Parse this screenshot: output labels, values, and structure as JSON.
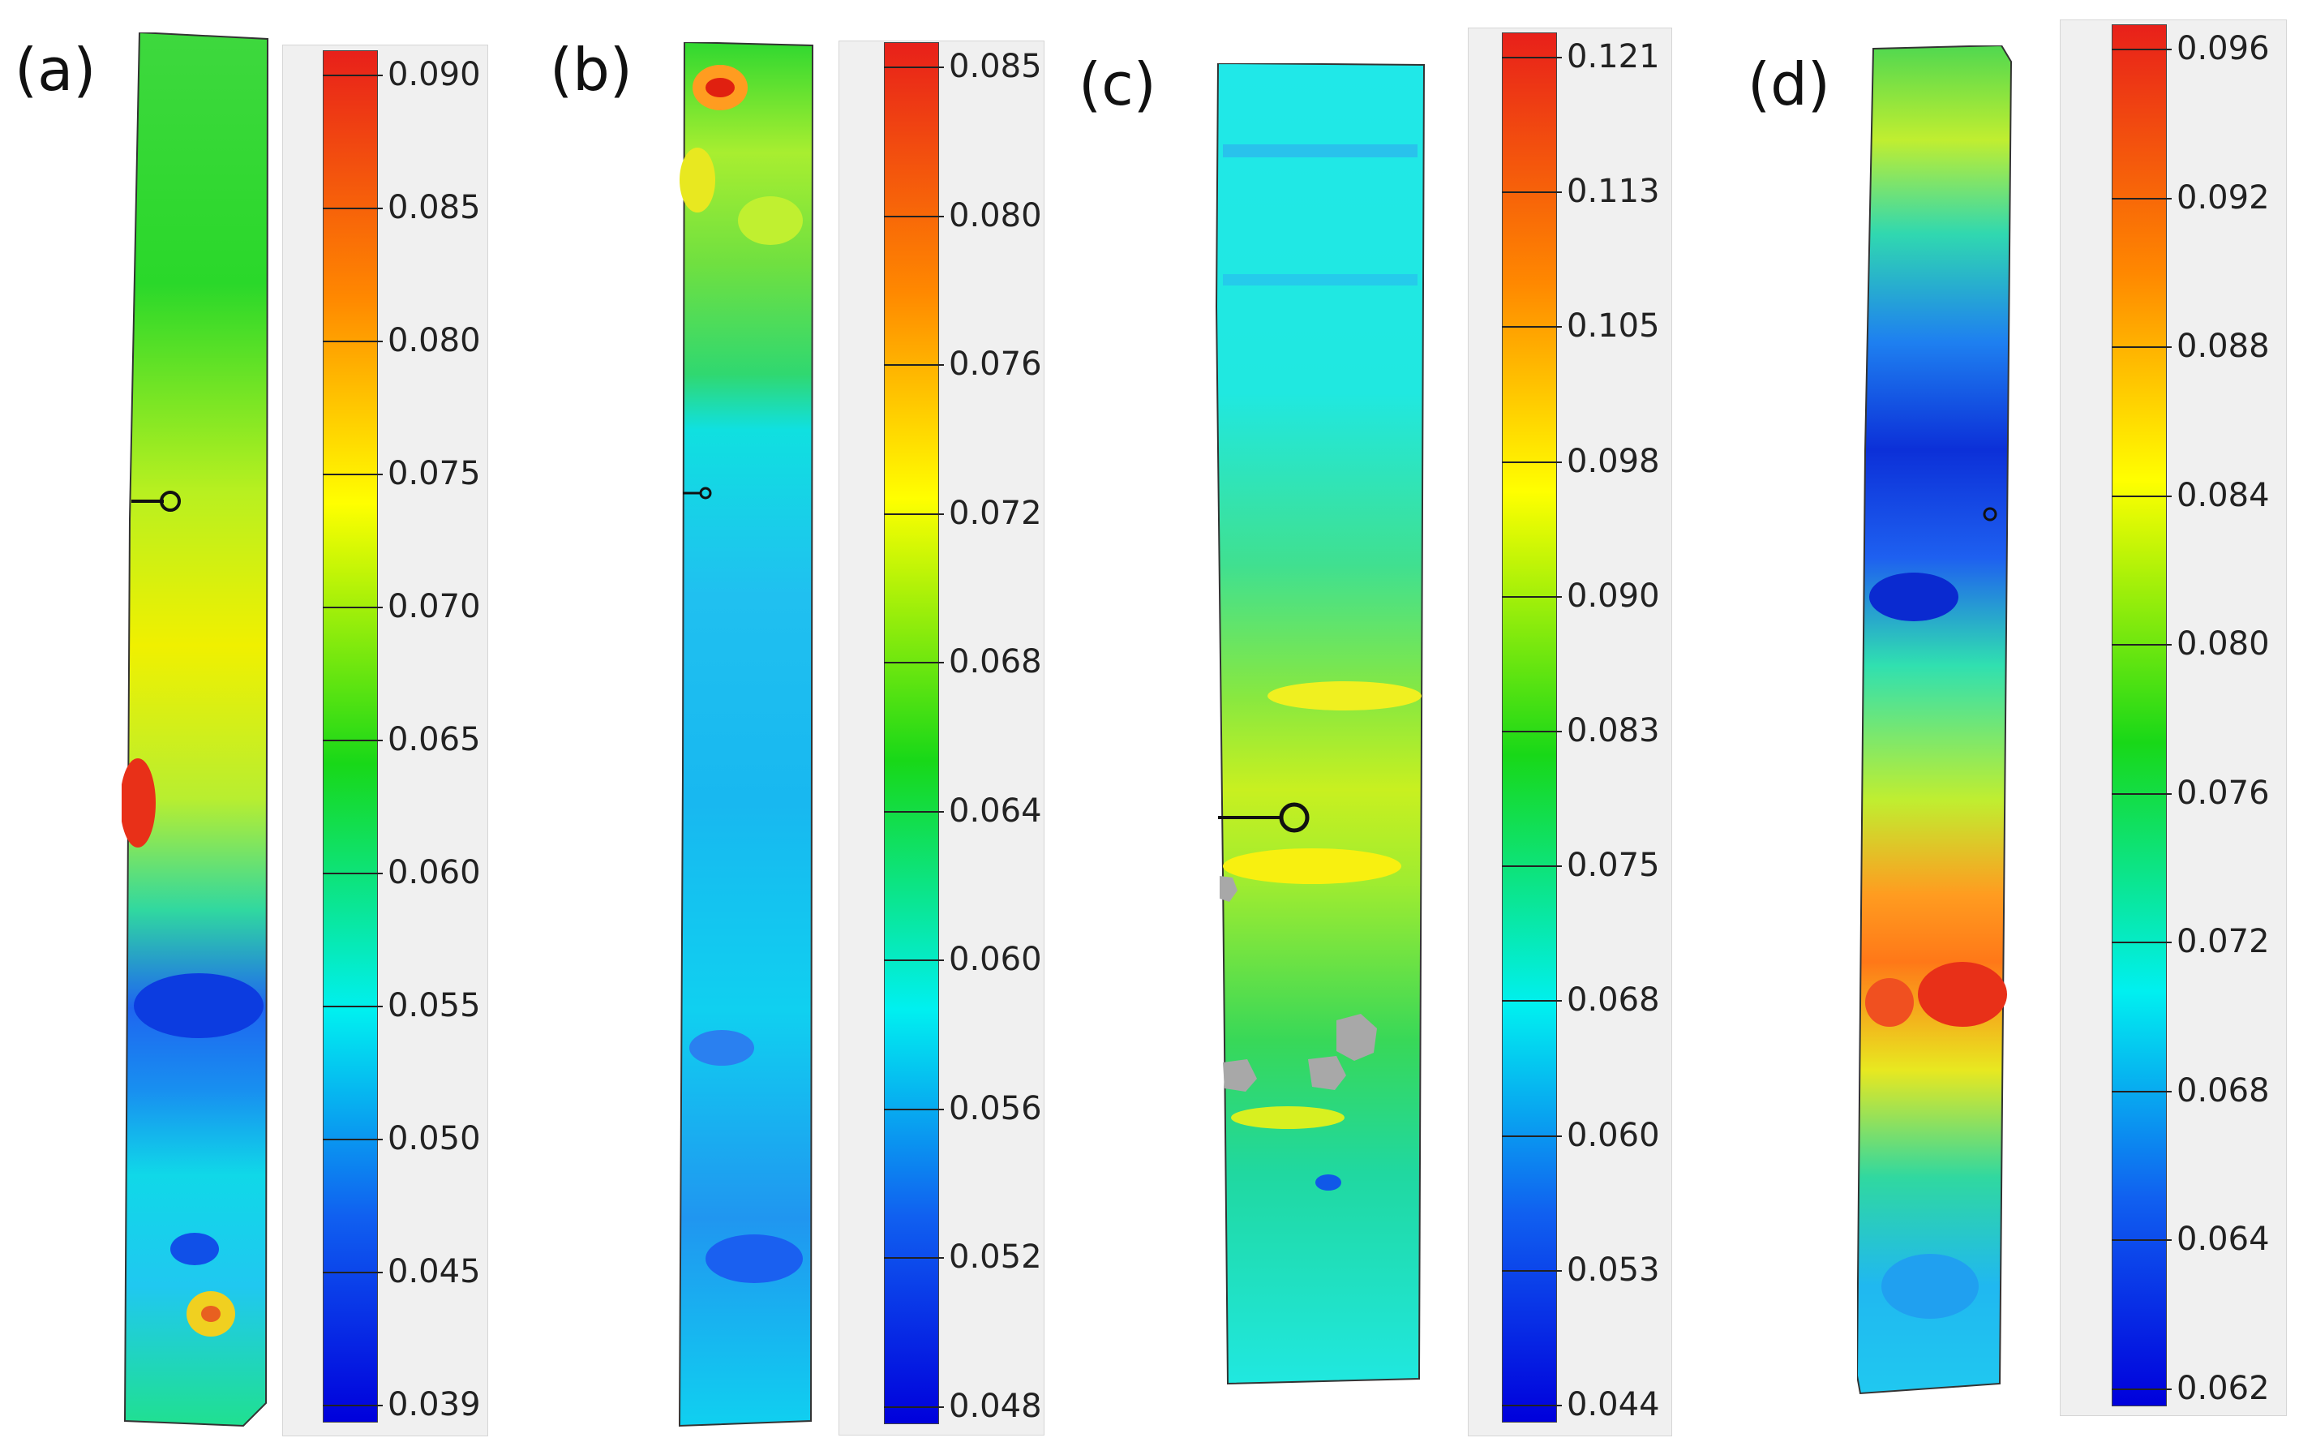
{
  "colors": {
    "red": "#e8201a",
    "orange": "#ff8800",
    "yellow": "#ffff00",
    "green": "#18d818",
    "cyan": "#00f0f0",
    "blue": "#1060f0",
    "navy": "#0000dc",
    "missing": "#a8a8a8"
  },
  "panels": [
    {
      "label": "(a)",
      "ticks": [
        "0.090",
        "0.085",
        "0.080",
        "0.075",
        "0.070",
        "0.065",
        "0.060",
        "0.055",
        "0.050",
        "0.045",
        "0.039"
      ]
    },
    {
      "label": "(b)",
      "ticks": [
        "0.085",
        "0.080",
        "0.076",
        "0.072",
        "0.068",
        "0.064",
        "0.060",
        "0.056",
        "0.052",
        "0.048"
      ]
    },
    {
      "label": "(c)",
      "ticks": [
        "0.121",
        "0.113",
        "0.105",
        "0.098",
        "0.090",
        "0.083",
        "0.075",
        "0.068",
        "0.060",
        "0.053",
        "0.044"
      ]
    },
    {
      "label": "(d)",
      "ticks": [
        "0.096",
        "0.092",
        "0.088",
        "0.084",
        "0.080",
        "0.076",
        "0.072",
        "0.068",
        "0.064",
        "0.062"
      ]
    }
  ]
}
